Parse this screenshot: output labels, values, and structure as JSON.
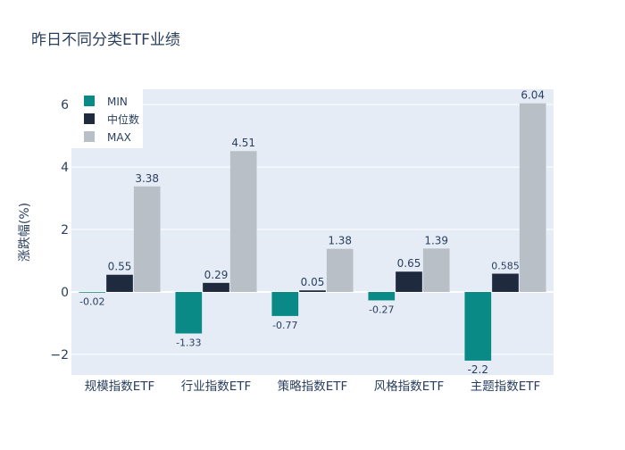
{
  "chart_data": {
    "type": "bar",
    "title": "昨日不同分类ETF业绩",
    "xlabel": "",
    "ylabel": "涨跌幅(%)",
    "categories": [
      "规模指数ETF",
      "行业指数ETF",
      "策略指数ETF",
      "风格指数ETF",
      "主题指数ETF"
    ],
    "series": [
      {
        "name": "MIN",
        "color": "#0a8a87",
        "values": [
          -0.02,
          -1.33,
          -0.77,
          -0.27,
          -2.2
        ],
        "labels": [
          "-0.02",
          "-1.33",
          "-0.77",
          "-0.27",
          "-2.2"
        ]
      },
      {
        "name": "中位数",
        "color": "#1f2a3e",
        "values": [
          0.55,
          0.29,
          0.05,
          0.65,
          0.585
        ],
        "labels": [
          "0.55",
          "0.29",
          "0.05",
          "0.65",
          "0.585"
        ]
      },
      {
        "name": "MAX",
        "color": "#b8bfc7",
        "values": [
          3.38,
          4.51,
          1.38,
          1.39,
          6.04
        ],
        "labels": [
          "3.38",
          "4.51",
          "1.38",
          "1.39",
          "6.04"
        ]
      }
    ],
    "ylim": [
      -2.66,
      6.49
    ],
    "yticks": [
      -2,
      0,
      2,
      4,
      6
    ],
    "ytick_labels": [
      "−2",
      "0",
      "2",
      "4",
      "6"
    ],
    "grid": true,
    "legend": "top-left",
    "plot_bg": "#e5ecf6"
  }
}
